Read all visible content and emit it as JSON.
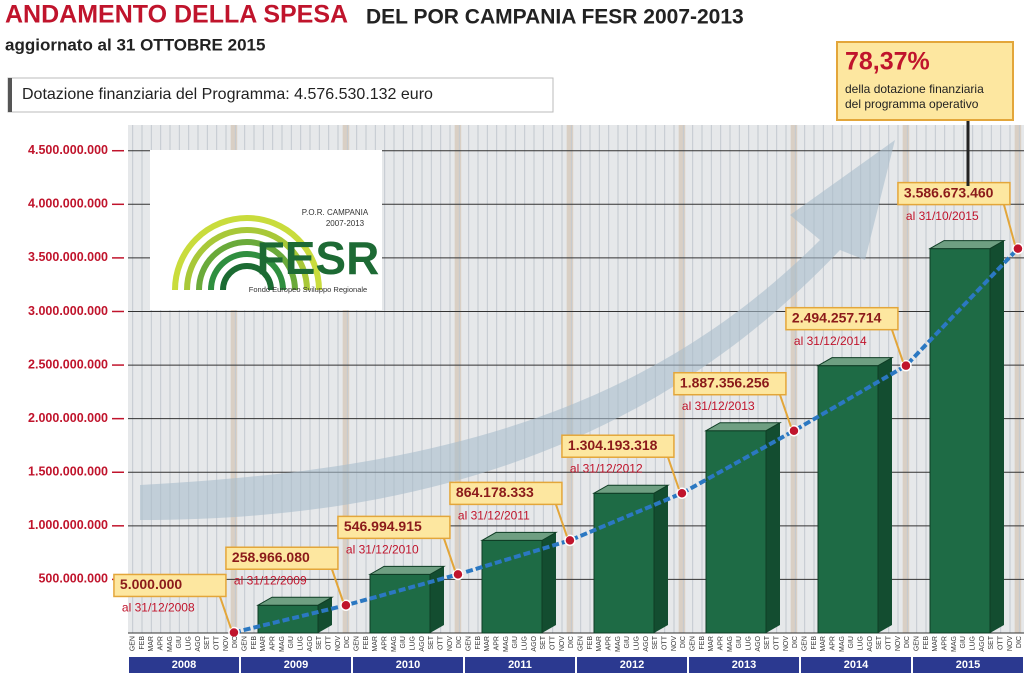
{
  "title_red": "ANDAMENTO DELLA SPESA",
  "title_black": "DEL POR CAMPANIA FESR 2007-2013",
  "subtitle": "aggiornato al 31 OTTOBRE 2015",
  "budget_note": "Dotazione finanziaria del Programma: 4.576.530.132 euro",
  "callout": {
    "percent": "78,37%",
    "text_1": "della dotazione finanziaria",
    "text_2": "del programma operativo"
  },
  "logo": {
    "line_1": "P.O.R. CAMPANIA",
    "line_2": "2007-2013",
    "name": "FESR",
    "caption": "Fondo Europeo Sviluppo Regionale"
  },
  "chart_data": {
    "type": "bar",
    "categories": [
      "2008",
      "2009",
      "2010",
      "2011",
      "2012",
      "2013",
      "2014",
      "2015"
    ],
    "months": [
      "GEN",
      "FEB",
      "MAR",
      "APR",
      "MAG",
      "GIU",
      "LUG",
      "AGO",
      "SET",
      "OTT",
      "NOV",
      "DIC"
    ],
    "values": [
      5000000,
      258966080,
      546994915,
      864178333,
      1304193318,
      1887356256,
      2494257714,
      3586673460
    ],
    "value_labels": [
      "5.000.000",
      "258.966.080",
      "546.994.915",
      "864.178.333",
      "1.304.193.318",
      "1.887.356.256",
      "2.494.257.714",
      "3.586.673.460"
    ],
    "date_labels": [
      "al 31/12/2008",
      "al 31/12/2009",
      "al 31/12/2010",
      "al 31/12/2011",
      "al 31/12/2012",
      "al 31/12/2013",
      "al 31/12/2014",
      "al 31/10/2015"
    ],
    "color": "#1e6b45",
    "ylim": [
      0,
      4740000000
    ],
    "yticks": [
      {
        "value": 500000000,
        "label": "500.000.000"
      },
      {
        "value": 1000000000,
        "label": "1.000.000.000"
      },
      {
        "value": 1500000000,
        "label": "1.500.000.000"
      },
      {
        "value": 2000000000,
        "label": "2.000.000.000"
      },
      {
        "value": 2500000000,
        "label": "2.500.000.000"
      },
      {
        "value": 3000000000,
        "label": "3.000.000.000"
      },
      {
        "value": 3500000000,
        "label": "3.500.000.000"
      },
      {
        "value": 4000000000,
        "label": "4.000.000.000"
      },
      {
        "value": 4500000000,
        "label": "4.500.000.000"
      }
    ],
    "grid": true
  }
}
